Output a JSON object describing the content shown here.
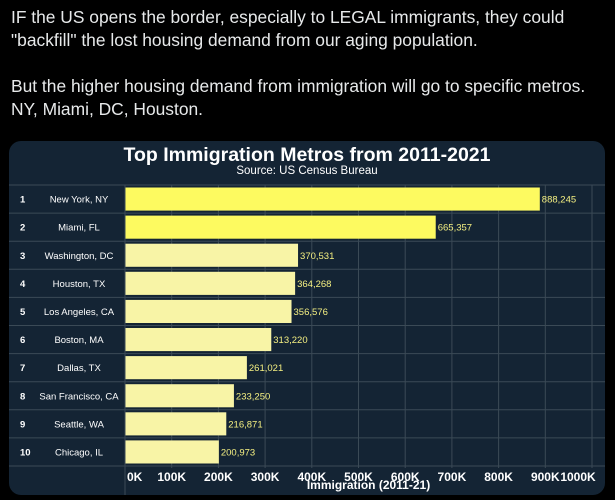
{
  "tweet": {
    "paragraph_1": "IF the US opens the border, especially to LEGAL immigrants, they could \"backfill\" the lost housing demand from our aging population.",
    "paragraph_2": "But the higher housing demand from immigration will go to specific metros. NY, Miami, DC, Houston."
  },
  "colors": {
    "background": "#000000",
    "card": "#142434",
    "bar_bright": "#fdfa60",
    "bar_light": "#f8f4a6",
    "value_label": "#f5f082",
    "gridline": "#3b4a56",
    "text": "#ffffff"
  },
  "chart_data": {
    "type": "bar",
    "orientation": "horizontal",
    "title": "Top Immigration Metros from 2011-2021",
    "subtitle": "Source: US Census Bureau",
    "xlabel": "Immigration (2011-21)",
    "ylabel": "",
    "xlim": [
      0,
      1000000
    ],
    "ticks": [
      0,
      100000,
      200000,
      300000,
      400000,
      500000,
      600000,
      700000,
      800000,
      900000,
      1000000
    ],
    "tick_labels": [
      "0K",
      "100K",
      "200K",
      "300K",
      "400K",
      "500K",
      "600K",
      "700K",
      "800K",
      "900K",
      "1000K"
    ],
    "ranks": [
      "1",
      "2",
      "3",
      "4",
      "5",
      "6",
      "7",
      "8",
      "9",
      "10"
    ],
    "categories": [
      "New York, NY",
      "Miami, FL",
      "Washington, DC",
      "Houston, TX",
      "Los Angeles, CA",
      "Boston, MA",
      "Dallas, TX",
      "San Francisco, CA",
      "Seattle, WA",
      "Chicago, IL"
    ],
    "values": [
      888245,
      665357,
      370531,
      364268,
      356576,
      313220,
      261021,
      233250,
      216871,
      200973
    ],
    "value_labels": [
      "888,245",
      "665,357",
      "370,531",
      "364,268",
      "356,576",
      "313,220",
      "261,021",
      "233,250",
      "216,871",
      "200,973"
    ],
    "grid": true
  }
}
